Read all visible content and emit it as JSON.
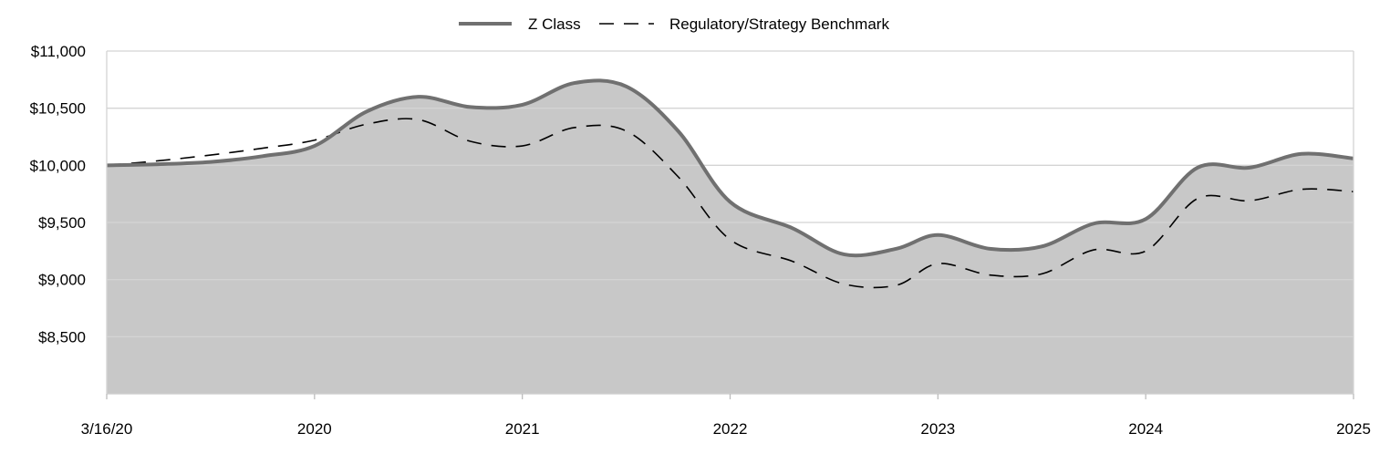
{
  "chart_data": {
    "type": "area",
    "title": "",
    "xlabel": "",
    "ylabel": "",
    "ylim": [
      8000,
      11000
    ],
    "yticks": [
      {
        "value": 8500,
        "label": "$8,500"
      },
      {
        "value": 9000,
        "label": "$9,000"
      },
      {
        "value": 9500,
        "label": "$9,500"
      },
      {
        "value": 10000,
        "label": "$10,000"
      },
      {
        "value": 10500,
        "label": "$10,500"
      },
      {
        "value": 11000,
        "label": "$11,000"
      }
    ],
    "xlim": [
      0,
      6
    ],
    "xticks": [
      {
        "value": 0,
        "label": "3/16/20"
      },
      {
        "value": 1,
        "label": "2020"
      },
      {
        "value": 2,
        "label": "2021"
      },
      {
        "value": 3,
        "label": "2022"
      },
      {
        "value": 4,
        "label": "2023"
      },
      {
        "value": 5,
        "label": "2024"
      },
      {
        "value": 6,
        "label": "2025"
      }
    ],
    "grid": true,
    "legend_position": "top-center",
    "series": [
      {
        "name": "Z Class",
        "style": "solid",
        "color": "#707070",
        "fill": "#c8c8c8",
        "points": [
          [
            0,
            10000
          ],
          [
            0.25,
            10010
          ],
          [
            0.5,
            10030
          ],
          [
            0.75,
            10080
          ],
          [
            1,
            10170
          ],
          [
            1.25,
            10470
          ],
          [
            1.5,
            10600
          ],
          [
            1.75,
            10510
          ],
          [
            2,
            10530
          ],
          [
            2.25,
            10720
          ],
          [
            2.5,
            10690
          ],
          [
            2.75,
            10300
          ],
          [
            3,
            9680
          ],
          [
            3.3,
            9450
          ],
          [
            3.55,
            9220
          ],
          [
            3.8,
            9270
          ],
          [
            4,
            9390
          ],
          [
            4.25,
            9270
          ],
          [
            4.5,
            9290
          ],
          [
            4.75,
            9490
          ],
          [
            5,
            9530
          ],
          [
            5.25,
            9980
          ],
          [
            5.5,
            9980
          ],
          [
            5.75,
            10100
          ],
          [
            6,
            10060
          ]
        ]
      },
      {
        "name": "Regulatory/Strategy Benchmark",
        "style": "dashed",
        "color": "#000000",
        "points": [
          [
            0,
            10000
          ],
          [
            0.25,
            10040
          ],
          [
            0.5,
            10090
          ],
          [
            0.75,
            10150
          ],
          [
            1,
            10220
          ],
          [
            1.25,
            10360
          ],
          [
            1.5,
            10400
          ],
          [
            1.75,
            10210
          ],
          [
            2,
            10170
          ],
          [
            2.25,
            10330
          ],
          [
            2.5,
            10300
          ],
          [
            2.75,
            9900
          ],
          [
            3,
            9350
          ],
          [
            3.3,
            9160
          ],
          [
            3.55,
            8960
          ],
          [
            3.8,
            8950
          ],
          [
            4,
            9140
          ],
          [
            4.25,
            9040
          ],
          [
            4.5,
            9050
          ],
          [
            4.75,
            9260
          ],
          [
            5,
            9250
          ],
          [
            5.25,
            9710
          ],
          [
            5.5,
            9690
          ],
          [
            5.75,
            9790
          ],
          [
            6,
            9770
          ]
        ]
      }
    ]
  }
}
